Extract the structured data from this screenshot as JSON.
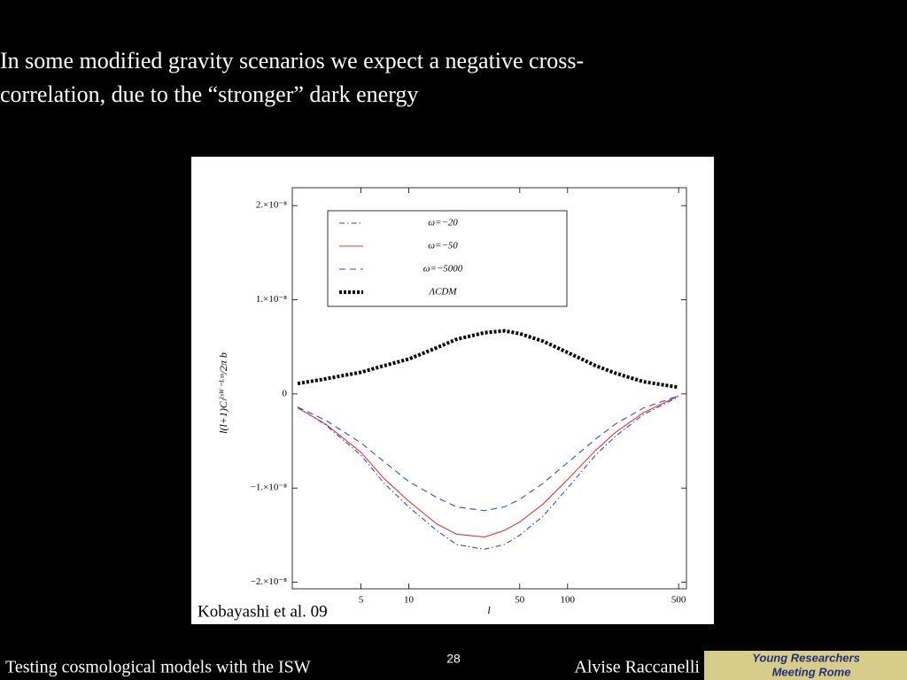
{
  "slide": {
    "title": [
      "In some modified gravity scenarios we expect a negative cross-",
      "correlation, due to the “stronger” dark energy"
    ],
    "footer_left": "Testing cosmological models with the ISW",
    "page_number": "28",
    "footer_right": "Alvise Raccanelli",
    "logo": [
      "Young Researchers",
      "Meeting Rome"
    ]
  },
  "chart_data": {
    "type": "line",
    "xlabel": "l",
    "ylabel": "l(l+1)Cₗᴵˢᵂ⁻ᴸˢˢ/2π b",
    "annotation": "Kobayashi et al. 09",
    "xscale": "log",
    "xlim": [
      1.85,
      560
    ],
    "xticks": [
      5,
      10,
      50,
      100,
      500
    ],
    "ylim": [
      -2.07e-08,
      2.19e-08
    ],
    "yticks": [
      {
        "value": 2e-08,
        "label": "2.×10⁻⁸"
      },
      {
        "value": 1e-08,
        "label": "1.×10⁻⁸"
      },
      0,
      {
        "value": -1e-08,
        "label": "−1.×10⁻⁸"
      },
      {
        "value": -2e-08,
        "label": "−2.×10⁻⁸"
      }
    ],
    "x": [
      2,
      3,
      5,
      7,
      10,
      15,
      20,
      30,
      40,
      50,
      70,
      100,
      150,
      200,
      300,
      500
    ],
    "series": [
      {
        "name": "ω=−20",
        "color": "#3b45c8",
        "style": "dashdot",
        "values": [
          -1.4e-09,
          -3.3e-09,
          -6.5e-09,
          -9.5e-09,
          -1.2e-08,
          -1.45e-08,
          -1.6e-08,
          -1.65e-08,
          -1.6e-08,
          -1.5e-08,
          -1.3e-08,
          -1e-08,
          -6.5e-09,
          -4.5e-09,
          -2.2e-09,
          -3e-10
        ]
      },
      {
        "name": "ω=−50",
        "color": "#e03a3a",
        "style": "solid",
        "values": [
          -1.5e-09,
          -3.2e-09,
          -6.2e-09,
          -9e-09,
          -1.14e-08,
          -1.38e-08,
          -1.49e-08,
          -1.52e-08,
          -1.45e-08,
          -1.36e-08,
          -1.17e-08,
          -9.1e-09,
          -6e-09,
          -4.1e-09,
          -2e-09,
          -2e-10
        ]
      },
      {
        "name": "ω=−5000",
        "color": "#3b45c8",
        "style": "dashed",
        "values": [
          -1.4e-09,
          -2.8e-09,
          -5.2e-09,
          -7.2e-09,
          -9.3e-09,
          -1.1e-08,
          -1.2e-08,
          -1.24e-08,
          -1.2e-08,
          -1.12e-08,
          -9.5e-09,
          -7.3e-09,
          -4.8e-09,
          -3.2e-09,
          -1.5e-09,
          -2e-10
        ]
      },
      {
        "name": "ΛCDM",
        "color": "#000000",
        "style": "dotted",
        "values": [
          1.1e-09,
          1.6e-09,
          2.3e-09,
          3e-09,
          3.7e-09,
          4.9e-09,
          5.8e-09,
          6.5e-09,
          6.7e-09,
          6.4e-09,
          5.6e-09,
          4.4e-09,
          3e-09,
          2.2e-09,
          1.3e-09,
          7e-10
        ]
      }
    ]
  }
}
